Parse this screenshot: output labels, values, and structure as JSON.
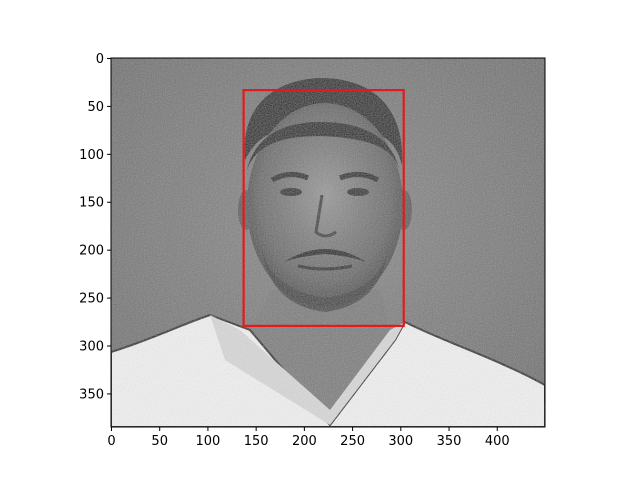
{
  "figure": {
    "image_description_visible": "grayscale photo",
    "x_ticks": [
      0,
      50,
      100,
      150,
      200,
      250,
      300,
      350,
      400
    ],
    "y_ticks": [
      0,
      50,
      100,
      150,
      200,
      250,
      300,
      350
    ],
    "xlim": [
      -0.5,
      449.5
    ],
    "ylim": [
      384.5,
      -0.5
    ],
    "bounding_box": {
      "x0": 137,
      "y0": 33,
      "x1": 303,
      "y1": 279,
      "color": "#e41a1c"
    }
  }
}
